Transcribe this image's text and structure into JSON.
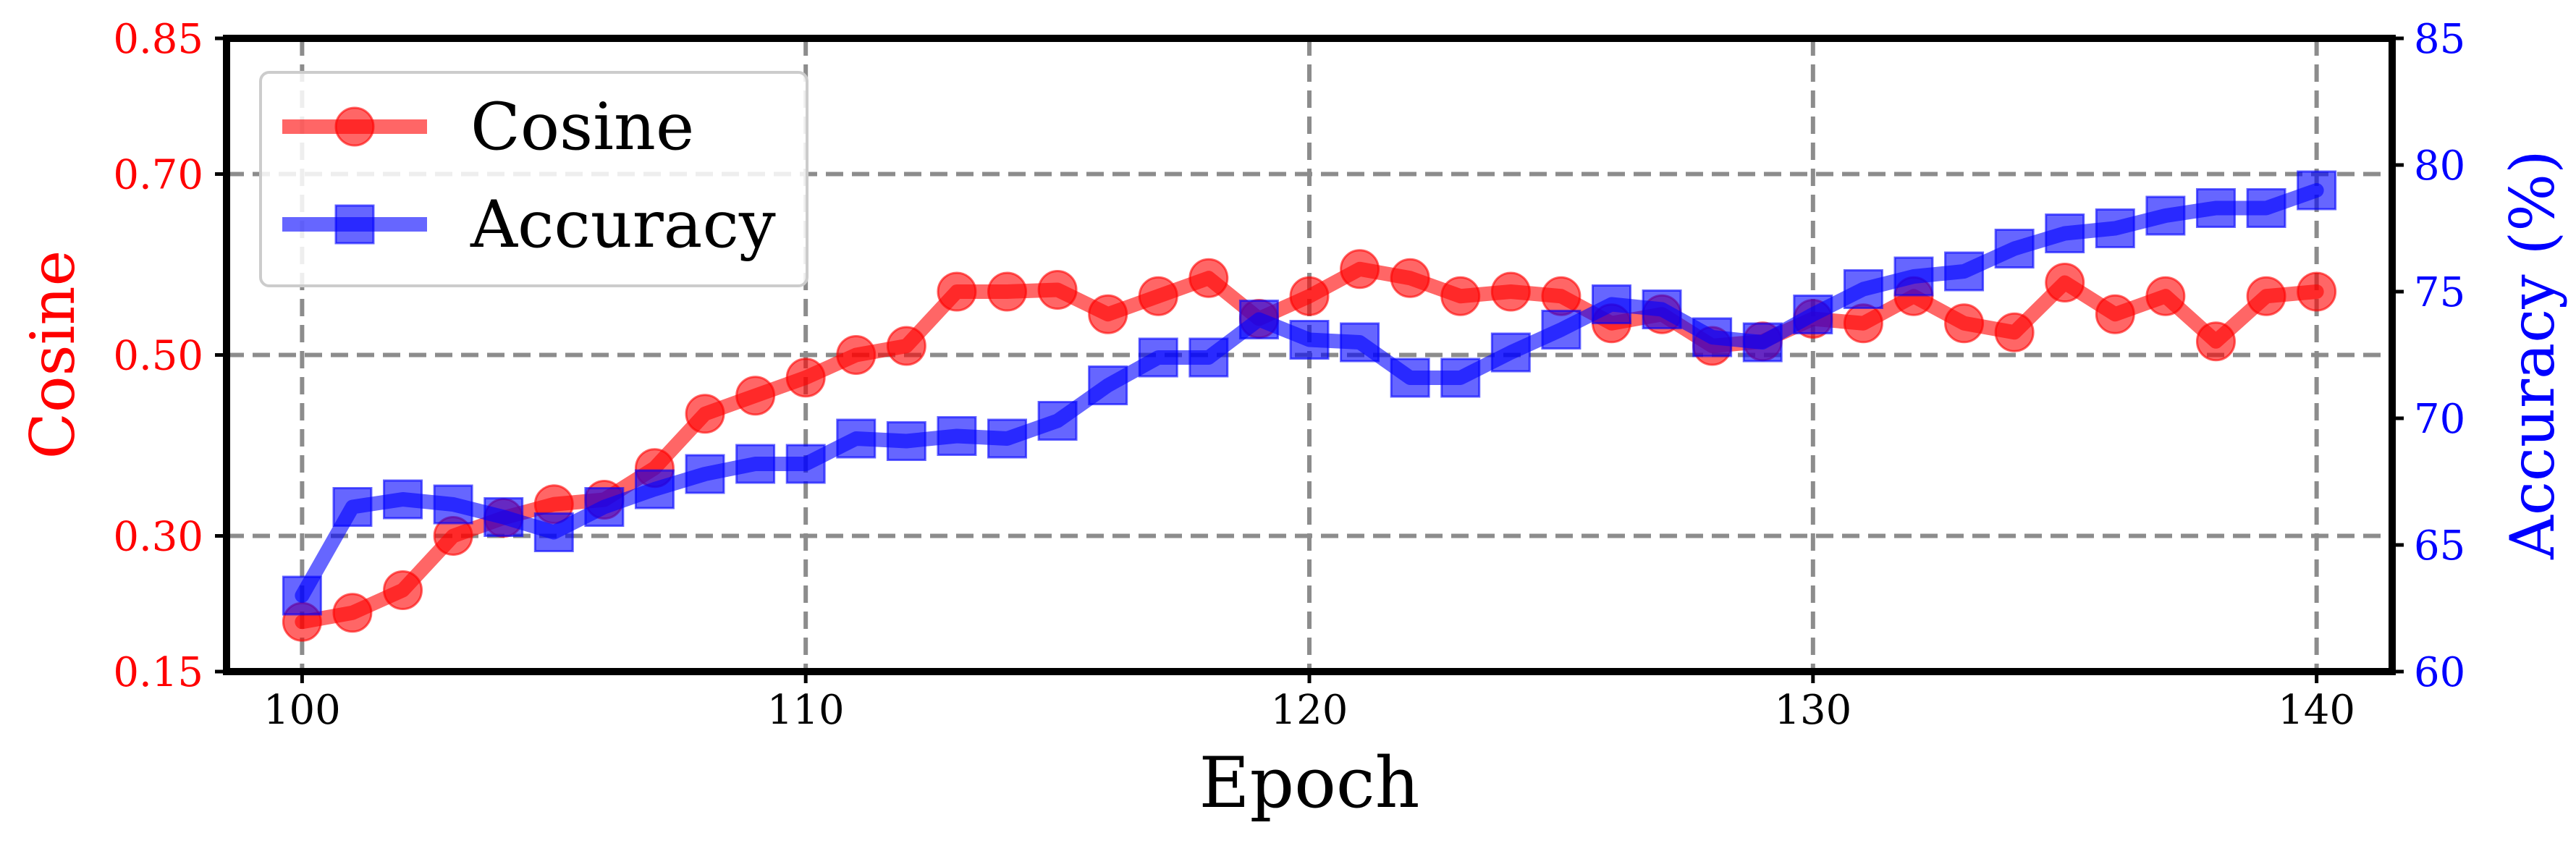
{
  "chart_data": {
    "type": "line",
    "xlabel": "Epoch",
    "ylabel_left": "Cosine",
    "ylabel_right": "Accuracy (%)",
    "xlim": [
      98.5,
      141.5
    ],
    "ylim_left": [
      0.15,
      0.85
    ],
    "ylim_right": [
      60,
      85
    ],
    "x_ticks": [
      100,
      110,
      120,
      130,
      140
    ],
    "y_left_ticks": [
      "0.15",
      "0.30",
      "0.50",
      "0.70",
      "0.85"
    ],
    "y_right_ticks": [
      "60",
      "65",
      "70",
      "75",
      "80",
      "85"
    ],
    "grid": true,
    "legend_position": "top-left",
    "x": [
      100,
      101,
      102,
      103,
      104,
      105,
      106,
      107,
      108,
      109,
      110,
      111,
      112,
      113,
      114,
      115,
      116,
      117,
      118,
      119,
      120,
      121,
      122,
      123,
      124,
      125,
      126,
      127,
      128,
      129,
      130,
      131,
      132,
      133,
      134,
      135,
      136,
      137,
      138,
      139,
      140
    ],
    "series": [
      {
        "name": "Cosine",
        "axis": "left",
        "color": "#ff0000",
        "marker": "circle",
        "values": [
          0.205,
          0.215,
          0.24,
          0.3,
          0.32,
          0.335,
          0.34,
          0.375,
          0.435,
          0.455,
          0.475,
          0.5,
          0.51,
          0.57,
          0.57,
          0.572,
          0.545,
          0.565,
          0.585,
          0.54,
          0.565,
          0.595,
          0.585,
          0.565,
          0.57,
          0.565,
          0.535,
          0.545,
          0.51,
          0.515,
          0.54,
          0.535,
          0.565,
          0.535,
          0.525,
          0.58,
          0.545,
          0.565,
          0.515,
          0.565,
          0.57
        ]
      },
      {
        "name": "Accuracy",
        "axis": "right",
        "color": "#0000ff",
        "marker": "square",
        "values": [
          63.0,
          66.5,
          66.8,
          66.6,
          66.1,
          65.5,
          66.5,
          67.2,
          67.8,
          68.2,
          68.2,
          69.2,
          69.1,
          69.3,
          69.2,
          69.9,
          71.3,
          72.4,
          72.4,
          73.9,
          73.1,
          73.0,
          71.6,
          71.6,
          72.6,
          73.5,
          74.5,
          74.3,
          73.2,
          73.0,
          74.1,
          75.1,
          75.6,
          75.8,
          76.7,
          77.3,
          77.5,
          78.0,
          78.3,
          78.3,
          79.0
        ]
      }
    ]
  }
}
